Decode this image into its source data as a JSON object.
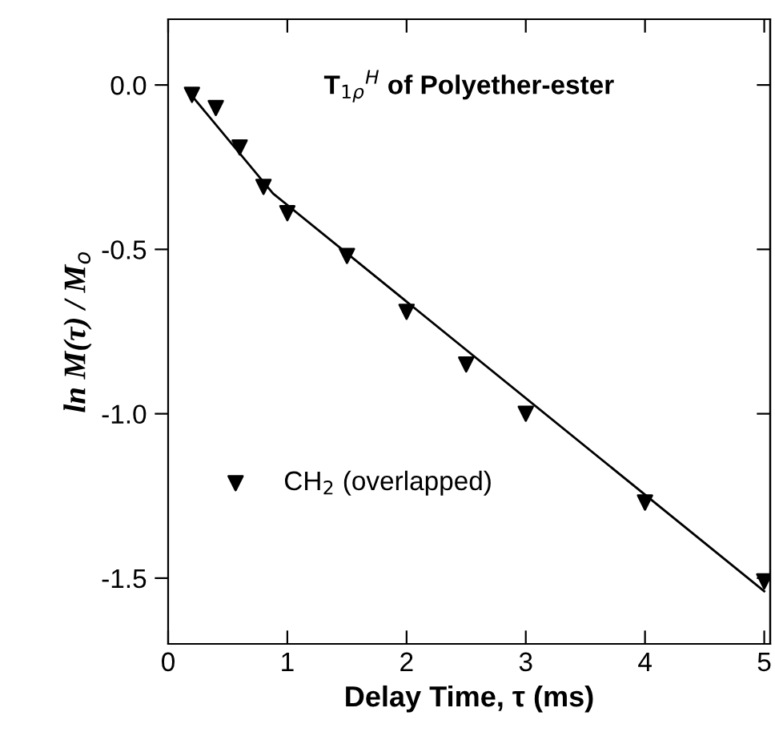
{
  "chart_data": {
    "type": "scatter",
    "title": "T$_{1ρ}$$^{H}$ of Polyether-ester",
    "xlabel": "Delay Time, τ (ms)",
    "ylabel": "ln M(τ) / M$_{o}$",
    "x": [
      0.2,
      0.4,
      0.6,
      0.8,
      1.0,
      1.5,
      2.0,
      2.5,
      3.0,
      4.0,
      5.0
    ],
    "series": [
      {
        "name": "CH$_{2}$ (overlapped)",
        "color": "#000000",
        "marker": "triangle",
        "values": [
          -0.03,
          -0.07,
          -0.19,
          -0.31,
          -0.39,
          -0.52,
          -0.69,
          -0.85,
          -1.0,
          -1.27,
          -1.51
        ]
      },
      {
        "type": "line",
        "color": "#000000",
        "x": [
          0.17,
          0.88,
          5.0
        ],
        "values": [
          -0.02,
          -0.33,
          -1.54
        ]
      }
    ],
    "xlim": [
      0,
      5.05
    ],
    "ylim": [
      -1.7,
      0.2
    ],
    "xticks": [
      0,
      1,
      2,
      3,
      4,
      5
    ],
    "yticks": [
      {
        "value": 0,
        "label": "0.0"
      },
      {
        "value": -0.5,
        "label": "-0.5"
      },
      {
        "value": -1,
        "label": "-1.0"
      },
      {
        "value": -1.5,
        "label": "-1.5"
      }
    ],
    "legend": "bottom left",
    "grid": false
  }
}
